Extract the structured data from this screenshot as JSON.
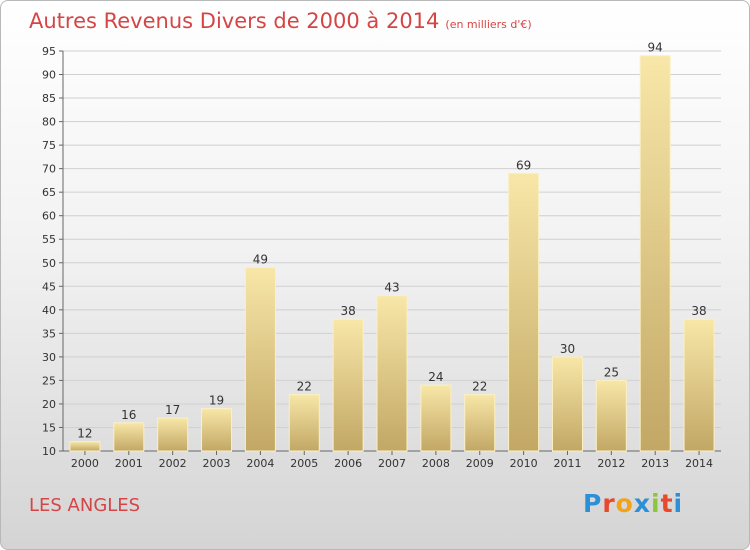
{
  "title": "Autres Revenus Divers de 2000 à 2014",
  "subtitle": "(en milliers d'€)",
  "location": "LES ANGLES",
  "brand": {
    "letters": [
      "P",
      "r",
      "o",
      "x",
      "i",
      "t",
      "i"
    ],
    "colors": [
      "#2d8fd6",
      "#e8482c",
      "#f2a31b",
      "#2d8fd6",
      "#8cc63e",
      "#e8482c",
      "#2d8fd6"
    ]
  },
  "colors": {
    "title": "#d64545",
    "bar_light": "#f8e7a8",
    "bar_dark": "#c2a765"
  },
  "chart_data": {
    "type": "bar",
    "categories": [
      "2000",
      "2001",
      "2002",
      "2003",
      "2004",
      "2005",
      "2006",
      "2007",
      "2008",
      "2009",
      "2010",
      "2011",
      "2012",
      "2013",
      "2014"
    ],
    "values": [
      12,
      16,
      17,
      19,
      49,
      22,
      38,
      43,
      24,
      22,
      69,
      30,
      25,
      94,
      38
    ],
    "ylim": [
      10,
      95
    ],
    "yticks": [
      10,
      15,
      20,
      25,
      30,
      35,
      40,
      45,
      50,
      55,
      60,
      65,
      70,
      75,
      80,
      85,
      90,
      95
    ],
    "grid": true
  }
}
